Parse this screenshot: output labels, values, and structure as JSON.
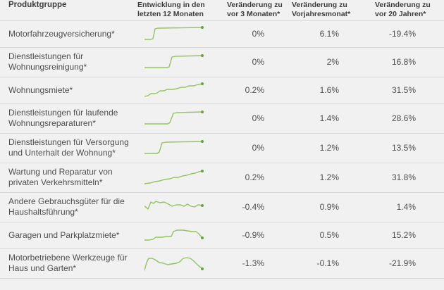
{
  "colors": {
    "bg": "#f1f1f2",
    "separator": "#d9d9d9",
    "header_text": "#3d3d3d",
    "body_text": "#4e4e4e",
    "spark_line": "#94c45e",
    "spark_dot": "#67a23f"
  },
  "header": {
    "col_product": {
      "line1": "",
      "line2": "Produktgruppe"
    },
    "col_trend": {
      "line1": "Entwicklung in den",
      "line2": "letzten 12 Monaten"
    },
    "col_3m": {
      "line1": "Veränderung zu",
      "line2": "vor 3 Monaten*"
    },
    "col_yoy": {
      "line1": "Veränderung zu",
      "line2": "Vorjahresmonat*"
    },
    "col_20y": {
      "line1": "Veränderung zu",
      "line2": "vor 20 Jahren*"
    }
  },
  "chart_data": {
    "type": "table",
    "columns": [
      "Produktgruppe",
      "Entwicklung in den letzten 12 Monaten",
      "Veränderung zu vor 3 Monaten*",
      "Veränderung zu Vorjahresmonat*",
      "Veränderung zu vor 20 Jahren*"
    ],
    "rows": [
      {
        "label": "Motorfahrzeugversicherung*",
        "change_3m": "0%",
        "change_yoy": "6.1%",
        "change_20y": "-19.4%",
        "sparkline": {
          "type": "line",
          "points": [
            [
              0,
              21
            ],
            [
              9,
              21
            ],
            [
              12,
              20
            ],
            [
              15,
              6
            ],
            [
              19,
              5
            ],
            [
              82,
              4
            ]
          ]
        }
      },
      {
        "label": "Dienstleistungen für Wohnungsreinigung*",
        "change_3m": "0%",
        "change_yoy": "2%",
        "change_20y": "16.8%",
        "sparkline": {
          "type": "line",
          "points": [
            [
              0,
              21
            ],
            [
              32,
              21
            ],
            [
              35,
              20
            ],
            [
              39,
              6
            ],
            [
              44,
              5
            ],
            [
              82,
              4
            ]
          ]
        }
      },
      {
        "label": "Wohnungsmiete*",
        "change_3m": "0.2%",
        "change_yoy": "1.6%",
        "change_20y": "31.5%",
        "sparkline": {
          "type": "line",
          "points": [
            [
              0,
              22
            ],
            [
              5,
              21
            ],
            [
              9,
              18
            ],
            [
              14,
              18
            ],
            [
              18,
              17
            ],
            [
              22,
              14
            ],
            [
              28,
              14
            ],
            [
              32,
              12
            ],
            [
              40,
              12
            ],
            [
              46,
              11
            ],
            [
              52,
              9
            ],
            [
              58,
              9
            ],
            [
              63,
              7
            ],
            [
              70,
              7
            ],
            [
              76,
              5
            ],
            [
              82,
              4
            ]
          ]
        }
      },
      {
        "label": "Dienstleistungen für laufende Wohnungsreparaturen*",
        "change_3m": "0%",
        "change_yoy": "1.4%",
        "change_20y": "28.6%",
        "sparkline": {
          "type": "line",
          "points": [
            [
              0,
              21
            ],
            [
              33,
              21
            ],
            [
              36,
              19
            ],
            [
              41,
              6
            ],
            [
              46,
              5
            ],
            [
              82,
              4
            ]
          ]
        }
      },
      {
        "label": "Dienstleistungen für Versorgung und Unterhalt der Wohnung*",
        "change_3m": "0%",
        "change_yoy": "1.2%",
        "change_20y": "13.5%",
        "sparkline": {
          "type": "line",
          "points": [
            [
              0,
              21
            ],
            [
              18,
              21
            ],
            [
              21,
              19
            ],
            [
              25,
              6
            ],
            [
              30,
              5
            ],
            [
              82,
              4
            ]
          ]
        }
      },
      {
        "label": "Wartung und Reparatur von privaten Verkehrsmitteln*",
        "change_3m": "0.2%",
        "change_yoy": "1.2%",
        "change_20y": "31.8%",
        "sparkline": {
          "type": "line",
          "points": [
            [
              0,
              22
            ],
            [
              8,
              21
            ],
            [
              15,
              19
            ],
            [
              22,
              18
            ],
            [
              28,
              16
            ],
            [
              36,
              15
            ],
            [
              42,
              13
            ],
            [
              48,
              13
            ],
            [
              54,
              11
            ],
            [
              60,
              10
            ],
            [
              66,
              8
            ],
            [
              72,
              7
            ],
            [
              77,
              5
            ],
            [
              82,
              4
            ]
          ]
        }
      },
      {
        "label": "Andere Gebrauchsgüter für die Haushaltsführung*",
        "change_3m": "-0.4%",
        "change_yoy": "0.9%",
        "change_20y": "1.4%",
        "sparkline": {
          "type": "line",
          "points": [
            [
              0,
              12
            ],
            [
              3,
              14
            ],
            [
              5,
              16
            ],
            [
              9,
              6
            ],
            [
              13,
              8
            ],
            [
              16,
              5
            ],
            [
              22,
              7
            ],
            [
              28,
              6
            ],
            [
              34,
              9
            ],
            [
              39,
              12
            ],
            [
              45,
              10
            ],
            [
              51,
              10
            ],
            [
              56,
              12
            ],
            [
              61,
              9
            ],
            [
              66,
              12
            ],
            [
              71,
              13
            ],
            [
              76,
              10
            ],
            [
              82,
              11
            ]
          ]
        }
      },
      {
        "label": "Garagen und Parkplatzmiete*",
        "change_3m": "-0.9%",
        "change_yoy": "0.5%",
        "change_20y": "15.2%",
        "sparkline": {
          "type": "line",
          "points": [
            [
              0,
              20
            ],
            [
              7,
              20
            ],
            [
              12,
              19
            ],
            [
              16,
              16
            ],
            [
              25,
              16
            ],
            [
              31,
              15
            ],
            [
              38,
              15
            ],
            [
              41,
              8
            ],
            [
              46,
              6
            ],
            [
              55,
              6
            ],
            [
              61,
              7
            ],
            [
              68,
              8
            ],
            [
              73,
              8
            ],
            [
              77,
              11
            ],
            [
              82,
              17
            ]
          ]
        }
      },
      {
        "label": "Motorbetriebene Werkzeuge für Haus und Garten*",
        "change_3m": "-1.3%",
        "change_yoy": "-0.1%",
        "change_20y": "-21.9%",
        "sparkline": {
          "type": "line",
          "points": [
            [
              0,
              23
            ],
            [
              3,
              12
            ],
            [
              6,
              6
            ],
            [
              11,
              6
            ],
            [
              15,
              8
            ],
            [
              21,
              12
            ],
            [
              27,
              13
            ],
            [
              33,
              15
            ],
            [
              39,
              14
            ],
            [
              45,
              13
            ],
            [
              50,
              11
            ],
            [
              55,
              6
            ],
            [
              60,
              5
            ],
            [
              65,
              6
            ],
            [
              69,
              9
            ],
            [
              75,
              15
            ],
            [
              82,
              21
            ]
          ]
        }
      }
    ]
  }
}
